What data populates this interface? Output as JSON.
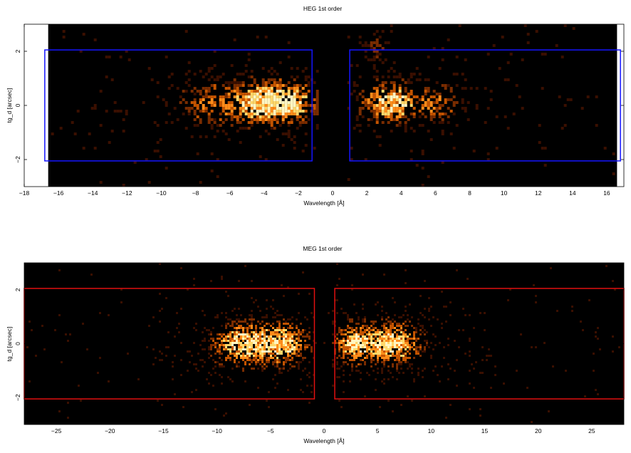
{
  "chart_data": [
    {
      "type": "heatmap",
      "title": "HEG 1st order",
      "xlabel": "Wavelength [Å]",
      "ylabel": "tg_d [arcsec]",
      "xlim": [
        -18,
        17
      ],
      "ylim": [
        -3,
        3
      ],
      "data_xlim": [
        -16.6,
        16.6
      ],
      "xticks": [
        -18,
        -16,
        -14,
        -12,
        -10,
        -8,
        -6,
        -4,
        -2,
        0,
        2,
        4,
        6,
        8,
        10,
        12,
        14,
        16
      ],
      "yticks": [
        -2,
        0,
        2
      ],
      "colormap": [
        "#000000",
        "#3a0f00",
        "#7a2c00",
        "#c45400",
        "#ff8c1a",
        "#ffd76a",
        "#fff6c2"
      ],
      "regions": [
        {
          "x": [
            -16.8,
            -1.2
          ],
          "y": [
            -2.05,
            2.05
          ],
          "color": "#1515ff"
        },
        {
          "x": [
            1.0,
            16.8
          ],
          "y": [
            -2.05,
            2.05
          ],
          "color": "#1515ff"
        }
      ],
      "clusters": [
        {
          "x": -2.6,
          "y": 0.1,
          "sx": 1.2,
          "sy": 0.55,
          "weight": 1.0
        },
        {
          "x": -4.6,
          "y": 0.1,
          "sx": 1.0,
          "sy": 0.55,
          "weight": 0.75
        },
        {
          "x": -7.2,
          "y": 0.1,
          "sx": 1.2,
          "sy": 0.6,
          "weight": 0.55
        },
        {
          "x": 3.4,
          "y": 0.1,
          "sx": 1.2,
          "sy": 0.55,
          "weight": 1.0
        },
        {
          "x": 6.3,
          "y": 0.1,
          "sx": 0.9,
          "sy": 0.5,
          "weight": 0.55
        },
        {
          "x": 2.5,
          "y": 2.1,
          "sx": 0.6,
          "sy": 0.4,
          "weight": 0.35
        }
      ]
    },
    {
      "type": "heatmap",
      "title": "MEG 1st order",
      "xlabel": "Wavelength [Å]",
      "ylabel": "tg_d [arcsec]",
      "xlim": [
        -28,
        28
      ],
      "ylim": [
        -3,
        3
      ],
      "data_xlim": [
        -28,
        28
      ],
      "xticks": [
        -25,
        -20,
        -15,
        -10,
        -5,
        0,
        5,
        10,
        15,
        20,
        25
      ],
      "yticks": [
        -2,
        0,
        2
      ],
      "colormap": [
        "#000000",
        "#3a0f00",
        "#7a2c00",
        "#c45400",
        "#ff8c1a",
        "#ffd76a",
        "#fff6c2"
      ],
      "regions": [
        {
          "x": [
            -28.2,
            -0.9
          ],
          "y": [
            -2.05,
            2.05
          ],
          "color": "#e01010"
        },
        {
          "x": [
            1.0,
            28.2
          ],
          "y": [
            -2.05,
            2.05
          ],
          "color": "#e01010"
        }
      ],
      "clusters": [
        {
          "x": -7.5,
          "y": 0.0,
          "sx": 2.0,
          "sy": 0.55,
          "weight": 1.0
        },
        {
          "x": -3.5,
          "y": 0.0,
          "sx": 1.5,
          "sy": 0.55,
          "weight": 0.85
        },
        {
          "x": 2.8,
          "y": 0.0,
          "sx": 1.3,
          "sy": 0.5,
          "weight": 0.9
        },
        {
          "x": 6.5,
          "y": 0.0,
          "sx": 1.8,
          "sy": 0.55,
          "weight": 1.0
        }
      ]
    }
  ]
}
